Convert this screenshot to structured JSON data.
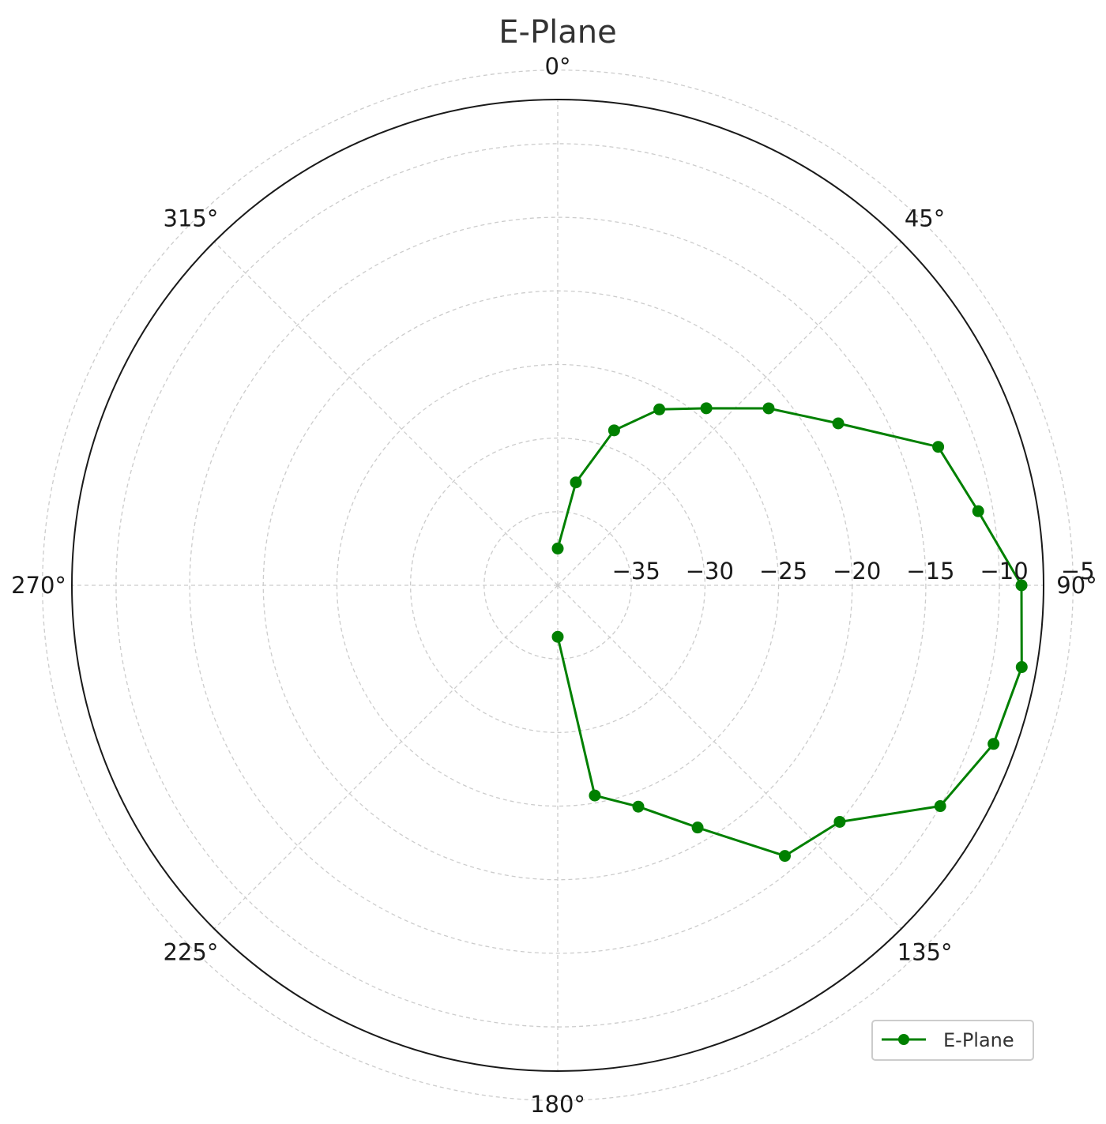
{
  "chart_data": {
    "type": "line",
    "subtype": "polar",
    "title": "E-Plane",
    "angular_axis": {
      "zero_location": "top",
      "direction": "clockwise",
      "ticks": [
        {
          "deg": 0,
          "label": "0°"
        },
        {
          "deg": 45,
          "label": "45°"
        },
        {
          "deg": 90,
          "label": "90°"
        },
        {
          "deg": 135,
          "label": "135°"
        },
        {
          "deg": 180,
          "label": "180°"
        },
        {
          "deg": 225,
          "label": "225°"
        },
        {
          "deg": 270,
          "label": "270°"
        },
        {
          "deg": 315,
          "label": "315°"
        }
      ]
    },
    "radial_axis": {
      "range": [
        -40,
        -7
      ],
      "ticks": [
        {
          "value": -35,
          "label": "−35"
        },
        {
          "value": -30,
          "label": "−30"
        },
        {
          "value": -25,
          "label": "−25"
        },
        {
          "value": -20,
          "label": "−20"
        },
        {
          "value": -15,
          "label": "−15"
        },
        {
          "value": -10,
          "label": "−10"
        },
        {
          "value": -5,
          "label": "−5"
        }
      ]
    },
    "grid": true,
    "legend": {
      "position": "bottom-right"
    },
    "series": [
      {
        "name": "E-Plane",
        "color": "#008000",
        "marker": "circle",
        "angles_deg": [
          0,
          10,
          20,
          30,
          40,
          50,
          60,
          70,
          80,
          90,
          100,
          110,
          120,
          130,
          140,
          150,
          160,
          170,
          180
        ],
        "values": [
          -37.5,
          -32.9,
          -28.8,
          -26.2,
          -24.3,
          -21.3,
          -18.0,
          -12.5,
          -11.0,
          -8.5,
          -8.0,
          -8.5,
          -10.0,
          -15.0,
          -16.0,
          -21.0,
          -24.0,
          -25.5,
          -36.5
        ]
      }
    ]
  }
}
